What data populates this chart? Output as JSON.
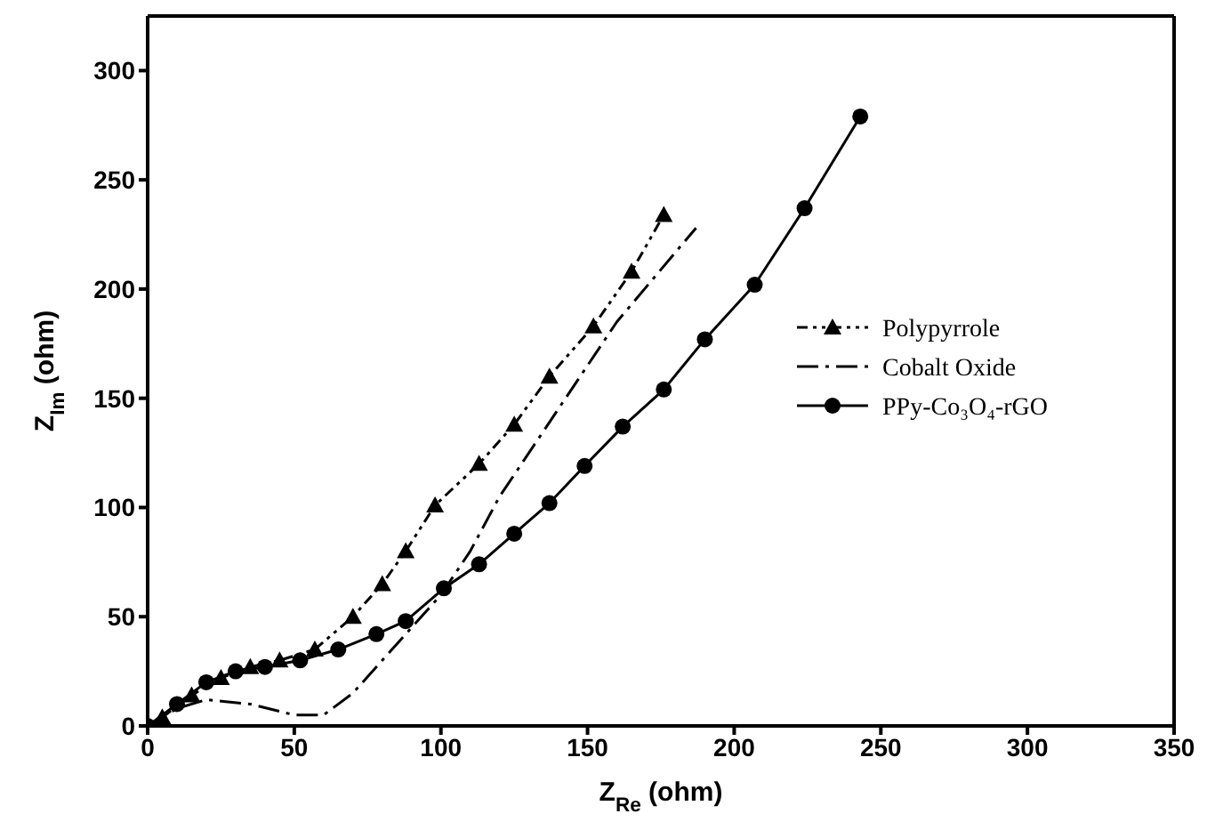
{
  "chart_data": {
    "type": "line",
    "xlabel": "Z$_{Re}$ (ohm)",
    "ylabel": "Z$_{Im}$ (ohm)",
    "xlim": [
      0,
      350
    ],
    "xticks": [
      0,
      50,
      100,
      150,
      200,
      250,
      300,
      350
    ],
    "ylim": [
      0,
      325
    ],
    "yticks": [
      0,
      50,
      100,
      150,
      200,
      250,
      300
    ],
    "grid": false,
    "legend": "right",
    "series": [
      {
        "name": "Polypyrrole",
        "color": "#000000",
        "marker": "triangle",
        "line_style": "dotted",
        "x": [
          5,
          15,
          25,
          35,
          45,
          57,
          70,
          80,
          88,
          98,
          113,
          125,
          137,
          152,
          165,
          176
        ],
        "values": [
          4,
          14,
          22,
          27,
          30,
          35,
          50,
          65,
          80,
          101,
          120,
          138,
          160,
          183,
          208,
          234
        ]
      },
      {
        "name": "Cobalt Oxide",
        "color": "#000000",
        "marker": "none",
        "line_style": "dashed",
        "x": [
          0,
          10,
          20,
          35,
          50,
          60,
          70,
          80,
          90,
          100,
          110,
          120,
          140,
          160,
          187
        ],
        "values": [
          0,
          8,
          12,
          10,
          5,
          5,
          15,
          30,
          45,
          60,
          80,
          105,
          145,
          185,
          228
        ]
      },
      {
        "name": "PPy-Co₃O₄-rGO",
        "color": "#000000",
        "marker": "circle",
        "line_style": "solid",
        "x": [
          0,
          10,
          20,
          30,
          40,
          52,
          65,
          78,
          88,
          101,
          113,
          125,
          137,
          149,
          162,
          176,
          190,
          207,
          224,
          243
        ],
        "values": [
          0,
          10,
          20,
          25,
          27,
          30,
          35,
          42,
          48,
          63,
          74,
          88,
          102,
          119,
          137,
          154,
          177,
          202,
          237,
          279
        ]
      }
    ]
  }
}
